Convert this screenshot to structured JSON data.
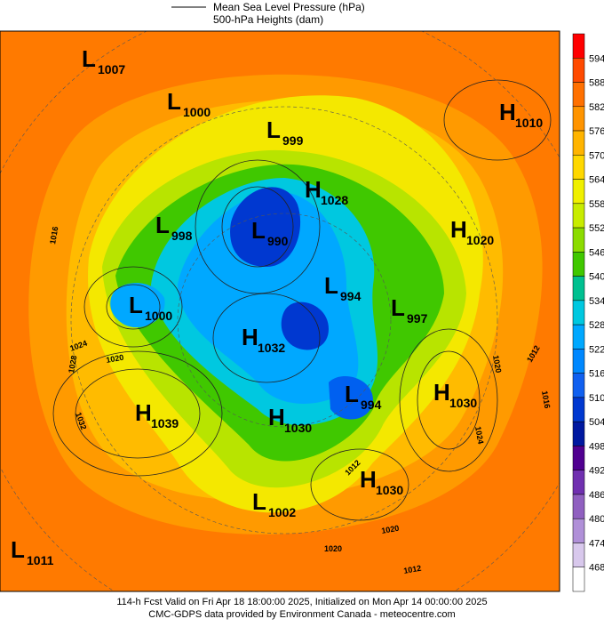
{
  "header": {
    "line1": "Mean Sea Level Pressure (hPa)",
    "line2": "500-hPa Heights (dam)"
  },
  "centers": [
    {
      "letter": "L",
      "value": "1007"
    },
    {
      "letter": "L",
      "value": "1000"
    },
    {
      "letter": "L",
      "value": "999"
    },
    {
      "letter": "H",
      "value": "1010"
    },
    {
      "letter": "H",
      "value": "1028"
    },
    {
      "letter": "L",
      "value": "998"
    },
    {
      "letter": "L",
      "value": "990"
    },
    {
      "letter": "H",
      "value": "1020"
    },
    {
      "letter": "L",
      "value": "994"
    },
    {
      "letter": "L",
      "value": "997"
    },
    {
      "letter": "L",
      "value": "1000"
    },
    {
      "letter": "H",
      "value": "1032"
    },
    {
      "letter": "H",
      "value": "1030"
    },
    {
      "letter": "L",
      "value": "994"
    },
    {
      "letter": "H",
      "value": "1039"
    },
    {
      "letter": "H",
      "value": "1030"
    },
    {
      "letter": "H",
      "value": "1030"
    },
    {
      "letter": "L",
      "value": "1002"
    },
    {
      "letter": "L",
      "value": "1011"
    }
  ],
  "contour_labels": [
    "1016",
    "1024",
    "1020",
    "1028",
    "1032",
    "1020",
    "1012",
    "1016",
    "1024",
    "1012",
    "1020",
    "1020",
    "1012"
  ],
  "colorbar": {
    "labels": [
      594,
      588,
      582,
      576,
      570,
      564,
      558,
      552,
      546,
      540,
      534,
      528,
      522,
      516,
      510,
      504,
      498,
      492,
      486,
      480,
      474,
      468
    ],
    "colors": [
      "#ff0000",
      "#ff4a00",
      "#ff7000",
      "#ff9400",
      "#ffb400",
      "#ffd800",
      "#f0f000",
      "#c8ec00",
      "#8cdc00",
      "#40c800",
      "#00c090",
      "#00c8e0",
      "#00a8ff",
      "#0088ff",
      "#1060f0",
      "#0038d0",
      "#0018a0",
      "#500090",
      "#7030b0",
      "#9060c0",
      "#b090d8",
      "#d8c8ec",
      "#ffffff"
    ]
  },
  "footer": {
    "line1": "114-h Fcst Valid on Fri Apr 18 18:00:00 2025, Initialized on Mon Apr 14 00:00:00 2025",
    "line2": "CMC-GDPS data provided by Environment Canada - meteocentre.com"
  }
}
